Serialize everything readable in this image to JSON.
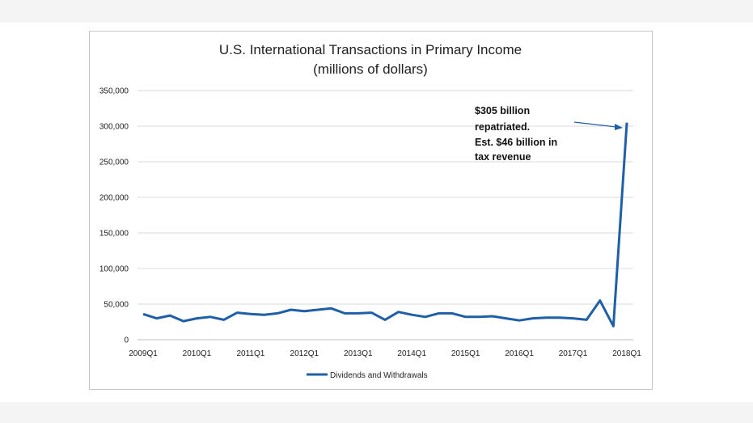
{
  "chart_data": {
    "type": "line",
    "title": "U.S. International Transactions in Primary Income",
    "subtitle": "(millions of dollars)",
    "xlabel": "",
    "ylabel": "",
    "ylim": [
      0,
      350000
    ],
    "y_ticks": [
      0,
      50000,
      100000,
      150000,
      200000,
      250000,
      300000,
      350000
    ],
    "y_tick_labels": [
      "0",
      "50,000",
      "100,000",
      "150,000",
      "200,000",
      "250,000",
      "300,000",
      "350,000"
    ],
    "x_tick_labels": [
      "2009Q1",
      "2010Q1",
      "2011Q1",
      "2012Q1",
      "2013Q1",
      "2014Q1",
      "2015Q1",
      "2016Q1",
      "2017Q1",
      "2018Q1"
    ],
    "x": [
      "2009Q1",
      "2009Q2",
      "2009Q3",
      "2009Q4",
      "2010Q1",
      "2010Q2",
      "2010Q3",
      "2010Q4",
      "2011Q1",
      "2011Q2",
      "2011Q3",
      "2011Q4",
      "2012Q1",
      "2012Q2",
      "2012Q3",
      "2012Q4",
      "2013Q1",
      "2013Q2",
      "2013Q3",
      "2013Q4",
      "2014Q1",
      "2014Q2",
      "2014Q3",
      "2014Q4",
      "2015Q1",
      "2015Q2",
      "2015Q3",
      "2015Q4",
      "2016Q1",
      "2016Q2",
      "2016Q3",
      "2016Q4",
      "2017Q1",
      "2017Q2",
      "2017Q3",
      "2017Q4",
      "2018Q1"
    ],
    "series": [
      {
        "name": "Dividends and Withdrawals",
        "color": "#1f5fa8",
        "values": [
          36000,
          30000,
          34000,
          26000,
          30000,
          32000,
          28000,
          38000,
          36000,
          35000,
          37000,
          42000,
          40000,
          42000,
          44000,
          37000,
          37000,
          38000,
          28000,
          39000,
          35000,
          32000,
          37000,
          37000,
          32000,
          32000,
          33000,
          30000,
          27000,
          30000,
          31000,
          31000,
          30000,
          28000,
          55000,
          19000,
          305000
        ]
      }
    ],
    "grid": true,
    "legend": "bottom",
    "annotation": {
      "lines": [
        "$305 billion",
        "repatriated.",
        "Est. $46 billion in",
        "tax revenue"
      ],
      "target": "2018Q1"
    }
  }
}
